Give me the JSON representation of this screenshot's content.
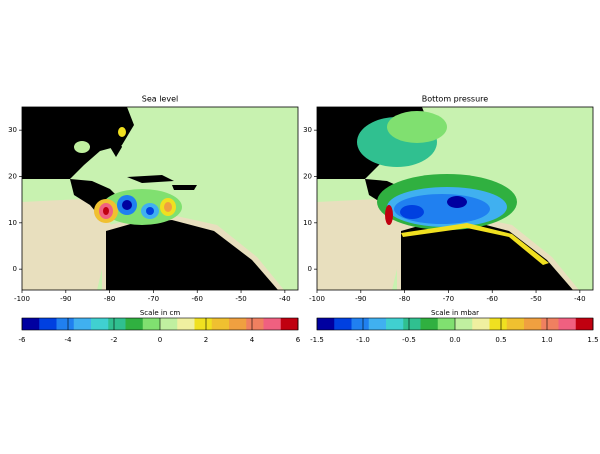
{
  "panels": [
    {
      "title": "Sea level",
      "xlim": [
        -100,
        -37
      ],
      "ylim": [
        -4.5,
        35
      ],
      "xticks": [
        -100,
        -90,
        -80,
        -70,
        -60,
        -50,
        -40
      ],
      "yticks": [
        0,
        10,
        20,
        30
      ],
      "colorbar": {
        "label": "Scale in cm",
        "lim": [
          -6,
          6
        ],
        "ticks": [
          -6,
          -4,
          -2,
          0,
          2,
          4,
          6
        ],
        "colors": [
          "#0000a0",
          "#0040e0",
          "#2080f0",
          "#40b0f0",
          "#40d0d0",
          "#30c090",
          "#30b040",
          "#80e070",
          "#c0f0a0",
          "#f0f0a0",
          "#f0e020",
          "#f0c030",
          "#f0a040",
          "#f08060",
          "#f06080",
          "#c00010"
        ]
      }
    },
    {
      "title": "Bottom pressure",
      "xlim": [
        -100,
        -37
      ],
      "ylim": [
        -4.5,
        35
      ],
      "xticks": [
        -100,
        -90,
        -80,
        -70,
        -60,
        -50,
        -40
      ],
      "yticks": [
        0,
        10,
        20,
        30
      ],
      "colorbar": {
        "label": "Scale in mbar",
        "lim": [
          -1.5,
          1.5
        ],
        "ticks": [
          -1.5,
          {
            "value": -1,
            "label": "-1.0"
          },
          -0.5,
          {
            "value": 0,
            "label": "0.0"
          },
          0.5,
          {
            "value": 1,
            "label": "1.0"
          },
          1.5
        ],
        "colors": [
          "#0000a0",
          "#0040e0",
          "#2080f0",
          "#40b0f0",
          "#40d0d0",
          "#30c090",
          "#30b040",
          "#80e070",
          "#c0f0a0",
          "#f0f0a0",
          "#f0e020",
          "#f0c030",
          "#f0a040",
          "#f08060",
          "#f06080",
          "#c00010"
        ]
      }
    }
  ]
}
